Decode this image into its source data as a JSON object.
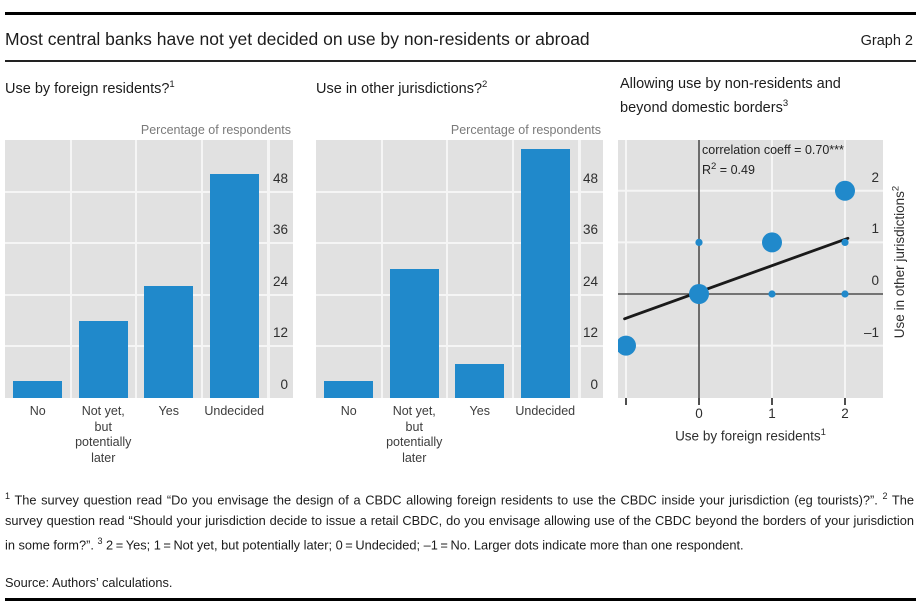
{
  "header": {
    "title": "Most central banks have not yet decided on use by non-residents or abroad",
    "graph_label": "Graph 2"
  },
  "colors": {
    "accent_blue": "#2089cb",
    "plot_background": "#e1e1e1",
    "gridline": "#f5f5f5",
    "axis_dark": "#4f4f4f",
    "trendline_black": "#1a1a1a"
  },
  "chart_data": [
    {
      "type": "bar",
      "title": "Use by foreign residents?",
      "title_sup": "1",
      "unit_label": "Percentage of respondents",
      "categories": [
        "No",
        "Not yet,\nbut\npotentially\nlater",
        "Yes",
        "Undecided"
      ],
      "values": [
        4,
        18,
        26,
        52
      ],
      "ylabel": "Percentage of respondents",
      "ylim": [
        0,
        60
      ],
      "yticks": [
        0,
        12,
        24,
        36,
        48
      ],
      "grid": true
    },
    {
      "type": "bar",
      "title": "Use in other jurisdictions?",
      "title_sup": "2",
      "unit_label": "Percentage of respondents",
      "categories": [
        "No",
        "Not yet,\nbut\npotentially\nlater",
        "Yes",
        "Undecided"
      ],
      "values": [
        4,
        30,
        8,
        58
      ],
      "ylabel": "Percentage of respondents",
      "ylim": [
        0,
        60
      ],
      "yticks": [
        0,
        12,
        24,
        36,
        48
      ],
      "grid": true
    },
    {
      "type": "scatter",
      "title": "Allowing use by non-residents and beyond domestic borders",
      "title_sup": "3",
      "annotation": {
        "line1": "correlation coeff = 0.70***",
        "r_prefix": "R",
        "r_sup": "2",
        "r_rest": " = 0.49"
      },
      "xlabel": "Use by foreign residents",
      "xlabel_sup": "1",
      "ylabel": "Use in other jurisdictions",
      "ylabel_sup": "2",
      "xlim": [
        -1.11,
        2.52
      ],
      "ylim": [
        -2.05,
        3.0
      ],
      "xticks": [
        {
          "v": -1,
          "label": ""
        },
        {
          "v": 0,
          "label": "0"
        },
        {
          "v": 1,
          "label": "1"
        },
        {
          "v": 2,
          "label": "2"
        }
      ],
      "yticks": [
        {
          "v": 2,
          "label": "2"
        },
        {
          "v": 1,
          "label": "1"
        },
        {
          "v": 0,
          "label": "0"
        },
        {
          "v": -1,
          "label": "–1"
        }
      ],
      "points": [
        {
          "x": -1,
          "y": -1,
          "size": "large"
        },
        {
          "x": 0,
          "y": 0,
          "size": "large"
        },
        {
          "x": 0,
          "y": 1,
          "size": "small"
        },
        {
          "x": 1,
          "y": 0,
          "size": "small"
        },
        {
          "x": 1,
          "y": 1,
          "size": "large"
        },
        {
          "x": 2,
          "y": 0,
          "size": "small"
        },
        {
          "x": 2,
          "y": 1,
          "size": "small"
        },
        {
          "x": 2,
          "y": 2,
          "size": "large"
        }
      ],
      "trendline": {
        "x1": -1.02,
        "y1": -0.48,
        "x2": 2.04,
        "y2": 1.08
      },
      "grid": true
    }
  ],
  "footnotes": {
    "segments": [
      {
        "sup": "1"
      },
      {
        "text": "  The survey question read “Do you envisage the design of a CBDC allowing foreign residents to use the CBDC inside your jurisdiction (eg tourists)?”.   "
      },
      {
        "sup": "2"
      },
      {
        "text": "  The survey question read “Should your jurisdiction decide to issue a retail CBDC, do you envisage allowing use of the CBDC beyond the borders of your jurisdiction in some form?”.   "
      },
      {
        "sup": "3"
      },
      {
        "text": "  2 = Yes; 1 = Not yet, but potentially later; 0 = Undecided; –1 = No. Larger dots indicate more than one respondent."
      }
    ]
  },
  "source": "Source: Authors’ calculations."
}
